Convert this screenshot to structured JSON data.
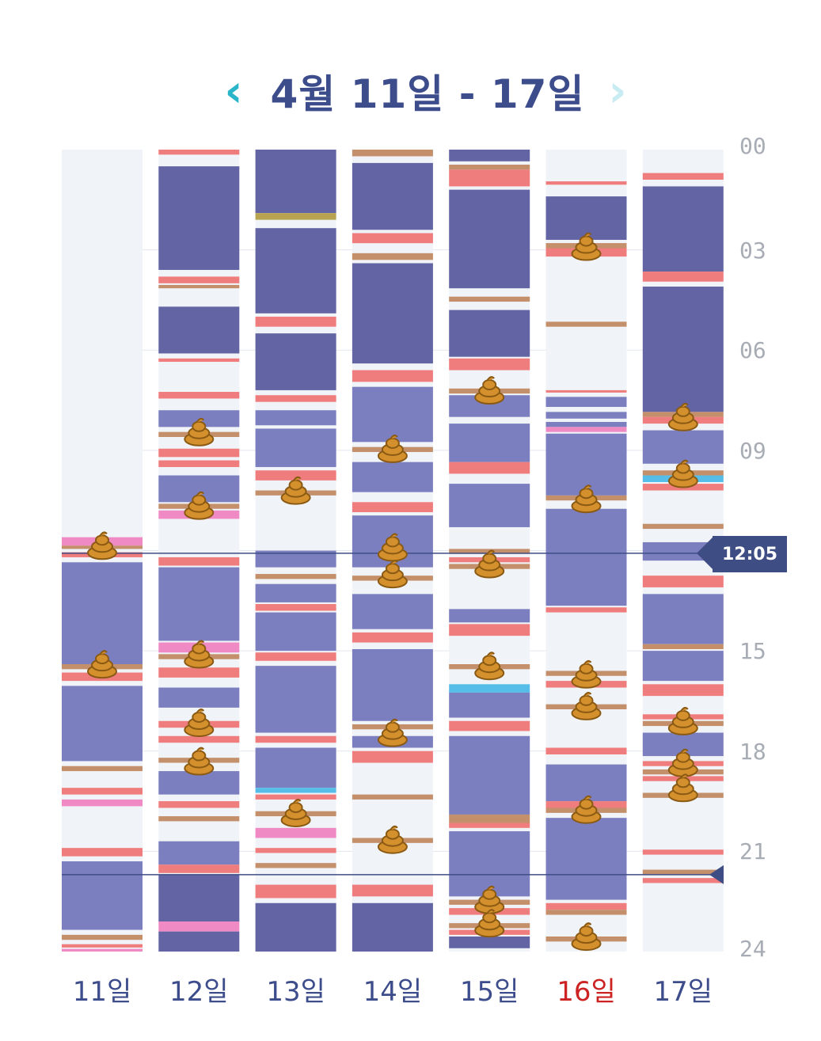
{
  "header": {
    "title": "4월 11일 - 17일",
    "prev_icon": "chevron-left-icon",
    "next_icon": "chevron-right-icon",
    "prev_color": "#2bb5c9",
    "next_color": "#c8ecf1"
  },
  "time_axis": {
    "ticks": [
      "00",
      "03",
      "06",
      "09",
      "15",
      "18",
      "21",
      "24"
    ]
  },
  "now_marker": {
    "label": "12:05",
    "hour": 12.08
  },
  "second_marker": {
    "hour": 21.7
  },
  "colors": {
    "background": "#f0f3f7",
    "sleep_deep": "#6264a3",
    "sleep_light": "#7c7fbf",
    "feed": "#f07d7d",
    "diaper": "#c4906c",
    "pink": "#f08ac5",
    "blue": "#55bde8",
    "olive": "#b8a450",
    "now_line": "#3f4d85",
    "sunday_label": "#cc2222",
    "weekday_label": "#3d4d8c"
  },
  "days": [
    {
      "label": "11일",
      "weekend": false,
      "events": [
        {
          "type": "pink",
          "start": 11.6,
          "end": 11.85
        },
        {
          "type": "diaper",
          "start": 11.85,
          "end": 11.95
        },
        {
          "type": "feed",
          "start": 12.05,
          "end": 12.2
        },
        {
          "type": "sleep_light",
          "start": 12.35,
          "end": 15.4
        },
        {
          "type": "diaper",
          "start": 15.4,
          "end": 15.55
        },
        {
          "type": "feed",
          "start": 15.65,
          "end": 15.9
        },
        {
          "type": "sleep_light",
          "start": 16.05,
          "end": 18.3
        },
        {
          "type": "diaper",
          "start": 18.45,
          "end": 18.6
        },
        {
          "type": "feed",
          "start": 19.1,
          "end": 19.3
        },
        {
          "type": "pink",
          "start": 19.45,
          "end": 19.65
        },
        {
          "type": "feed",
          "start": 20.9,
          "end": 21.15
        },
        {
          "type": "sleep_light",
          "start": 21.3,
          "end": 23.35
        },
        {
          "type": "diaper",
          "start": 23.5,
          "end": 23.65
        },
        {
          "type": "feed",
          "start": 23.78,
          "end": 23.88
        },
        {
          "type": "pink",
          "start": 23.92,
          "end": 24.0
        }
      ],
      "poops": [
        11.9,
        15.45
      ]
    },
    {
      "label": "12일",
      "weekend": false,
      "events": [
        {
          "type": "feed",
          "start": 0.0,
          "end": 0.15
        },
        {
          "type": "sleep_deep",
          "start": 0.5,
          "end": 3.6
        },
        {
          "type": "feed",
          "start": 3.8,
          "end": 4.0
        },
        {
          "type": "diaper",
          "start": 4.05,
          "end": 4.15
        },
        {
          "type": "sleep_deep",
          "start": 4.7,
          "end": 6.1
        },
        {
          "type": "feed",
          "start": 6.25,
          "end": 6.35
        },
        {
          "type": "feed",
          "start": 7.25,
          "end": 7.45
        },
        {
          "type": "sleep_light",
          "start": 7.8,
          "end": 8.3
        },
        {
          "type": "diaper",
          "start": 8.45,
          "end": 8.6
        },
        {
          "type": "feed",
          "start": 8.95,
          "end": 9.2
        },
        {
          "type": "feed",
          "start": 9.3,
          "end": 9.5
        },
        {
          "type": "sleep_light",
          "start": 9.75,
          "end": 10.55
        },
        {
          "type": "diaper",
          "start": 10.6,
          "end": 10.75
        },
        {
          "type": "pink",
          "start": 10.8,
          "end": 11.05
        },
        {
          "type": "feed",
          "start": 12.2,
          "end": 12.45
        },
        {
          "type": "sleep_light",
          "start": 12.5,
          "end": 14.7
        },
        {
          "type": "pink",
          "start": 14.75,
          "end": 15.05
        },
        {
          "type": "diaper",
          "start": 15.1,
          "end": 15.25
        },
        {
          "type": "feed",
          "start": 15.5,
          "end": 15.8
        },
        {
          "type": "sleep_light",
          "start": 16.1,
          "end": 16.7
        },
        {
          "type": "feed",
          "start": 17.1,
          "end": 17.3
        },
        {
          "type": "feed",
          "start": 17.55,
          "end": 17.75
        },
        {
          "type": "diaper",
          "start": 18.2,
          "end": 18.35
        },
        {
          "type": "sleep_light",
          "start": 18.6,
          "end": 19.3
        },
        {
          "type": "feed",
          "start": 19.5,
          "end": 19.7
        },
        {
          "type": "diaper",
          "start": 19.95,
          "end": 20.1
        },
        {
          "type": "sleep_light",
          "start": 20.7,
          "end": 21.4
        },
        {
          "type": "feed",
          "start": 21.4,
          "end": 21.65
        },
        {
          "type": "sleep_deep",
          "start": 21.7,
          "end": 23.1
        },
        {
          "type": "pink",
          "start": 23.1,
          "end": 23.4
        },
        {
          "type": "sleep_deep",
          "start": 23.4,
          "end": 24.0
        }
      ],
      "poops": [
        8.5,
        10.7,
        15.15,
        17.2,
        18.35
      ]
    },
    {
      "label": "13일",
      "weekend": false,
      "events": [
        {
          "type": "sleep_deep",
          "start": 0.0,
          "end": 1.9
        },
        {
          "type": "olive",
          "start": 1.9,
          "end": 2.1
        },
        {
          "type": "sleep_deep",
          "start": 2.35,
          "end": 4.9
        },
        {
          "type": "feed",
          "start": 5.0,
          "end": 5.3
        },
        {
          "type": "sleep_deep",
          "start": 5.5,
          "end": 7.2
        },
        {
          "type": "feed",
          "start": 7.35,
          "end": 7.55
        },
        {
          "type": "sleep_light",
          "start": 7.8,
          "end": 8.25
        },
        {
          "type": "sleep_light",
          "start": 8.35,
          "end": 9.5
        },
        {
          "type": "feed",
          "start": 9.6,
          "end": 9.9
        },
        {
          "type": "diaper",
          "start": 10.2,
          "end": 10.35
        },
        {
          "type": "sleep_light",
          "start": 12.0,
          "end": 12.5
        },
        {
          "type": "diaper",
          "start": 12.7,
          "end": 12.85
        },
        {
          "type": "sleep_light",
          "start": 13.0,
          "end": 13.55
        },
        {
          "type": "feed",
          "start": 13.6,
          "end": 13.8
        },
        {
          "type": "sleep_light",
          "start": 13.85,
          "end": 15.0
        },
        {
          "type": "feed",
          "start": 15.05,
          "end": 15.3
        },
        {
          "type": "sleep_light",
          "start": 15.45,
          "end": 17.45
        },
        {
          "type": "feed",
          "start": 17.55,
          "end": 17.75
        },
        {
          "type": "sleep_light",
          "start": 17.9,
          "end": 19.1
        },
        {
          "type": "blue",
          "start": 19.1,
          "end": 19.25
        },
        {
          "type": "feed",
          "start": 19.3,
          "end": 19.45
        },
        {
          "type": "diaper",
          "start": 19.8,
          "end": 19.95
        },
        {
          "type": "pink",
          "start": 20.3,
          "end": 20.6
        },
        {
          "type": "feed",
          "start": 20.9,
          "end": 21.05
        },
        {
          "type": "diaper",
          "start": 21.35,
          "end": 21.5
        },
        {
          "type": "feed",
          "start": 22.0,
          "end": 22.4
        },
        {
          "type": "sleep_deep",
          "start": 22.55,
          "end": 24.0
        }
      ],
      "poops": [
        10.25,
        19.9
      ]
    },
    {
      "label": "14일",
      "weekend": false,
      "events": [
        {
          "type": "diaper",
          "start": 0.0,
          "end": 0.2
        },
        {
          "type": "sleep_deep",
          "start": 0.4,
          "end": 2.4
        },
        {
          "type": "feed",
          "start": 2.5,
          "end": 2.8
        },
        {
          "type": "diaper",
          "start": 3.1,
          "end": 3.3
        },
        {
          "type": "sleep_deep",
          "start": 3.4,
          "end": 6.4
        },
        {
          "type": "feed",
          "start": 6.6,
          "end": 6.95
        },
        {
          "type": "sleep_light",
          "start": 7.1,
          "end": 8.75
        },
        {
          "type": "diaper",
          "start": 8.9,
          "end": 9.05
        },
        {
          "type": "sleep_light",
          "start": 9.35,
          "end": 10.25
        },
        {
          "type": "feed",
          "start": 10.55,
          "end": 10.85
        },
        {
          "type": "sleep_light",
          "start": 10.95,
          "end": 12.5
        },
        {
          "type": "diaper",
          "start": 12.75,
          "end": 12.9
        },
        {
          "type": "sleep_light",
          "start": 13.3,
          "end": 14.35
        },
        {
          "type": "feed",
          "start": 14.45,
          "end": 14.75
        },
        {
          "type": "sleep_light",
          "start": 14.95,
          "end": 17.1
        },
        {
          "type": "diaper",
          "start": 17.2,
          "end": 17.35
        },
        {
          "type": "sleep_light",
          "start": 17.55,
          "end": 17.9
        },
        {
          "type": "feed",
          "start": 18.0,
          "end": 18.35
        },
        {
          "type": "diaper",
          "start": 19.3,
          "end": 19.45
        },
        {
          "type": "diaper",
          "start": 20.6,
          "end": 20.75
        },
        {
          "type": "feed",
          "start": 22.0,
          "end": 22.35
        },
        {
          "type": "sleep_deep",
          "start": 22.55,
          "end": 24.0
        }
      ],
      "poops": [
        9.0,
        11.95,
        12.75,
        17.5,
        20.7
      ]
    },
    {
      "label": "15일",
      "weekend": false,
      "events": [
        {
          "type": "sleep_deep",
          "start": 0.0,
          "end": 0.35
        },
        {
          "type": "diaper",
          "start": 0.45,
          "end": 0.6
        },
        {
          "type": "feed",
          "start": 0.6,
          "end": 1.1
        },
        {
          "type": "sleep_deep",
          "start": 1.2,
          "end": 4.15
        },
        {
          "type": "diaper",
          "start": 4.4,
          "end": 4.55
        },
        {
          "type": "sleep_deep",
          "start": 4.8,
          "end": 6.2
        },
        {
          "type": "feed",
          "start": 6.25,
          "end": 6.6
        },
        {
          "type": "diaper",
          "start": 7.15,
          "end": 7.3
        },
        {
          "type": "sleep_light",
          "start": 7.35,
          "end": 8.0
        },
        {
          "type": "sleep_light",
          "start": 8.2,
          "end": 9.35
        },
        {
          "type": "feed",
          "start": 9.35,
          "end": 9.7
        },
        {
          "type": "sleep_light",
          "start": 10.0,
          "end": 11.3
        },
        {
          "type": "diaper",
          "start": 11.95,
          "end": 12.1
        },
        {
          "type": "feed",
          "start": 12.2,
          "end": 12.35
        },
        {
          "type": "diaper",
          "start": 12.4,
          "end": 12.55
        },
        {
          "type": "sleep_light",
          "start": 13.75,
          "end": 14.15
        },
        {
          "type": "feed",
          "start": 14.2,
          "end": 14.55
        },
        {
          "type": "diaper",
          "start": 15.4,
          "end": 15.55
        },
        {
          "type": "blue",
          "start": 16.0,
          "end": 16.25
        },
        {
          "type": "sleep_light",
          "start": 16.25,
          "end": 17.0
        },
        {
          "type": "feed",
          "start": 17.1,
          "end": 17.4
        },
        {
          "type": "sleep_light",
          "start": 17.55,
          "end": 19.9
        },
        {
          "type": "diaper",
          "start": 19.9,
          "end": 20.15
        },
        {
          "type": "feed",
          "start": 20.15,
          "end": 20.3
        },
        {
          "type": "sleep_light",
          "start": 20.4,
          "end": 22.35
        },
        {
          "type": "diaper",
          "start": 22.45,
          "end": 22.6
        },
        {
          "type": "feed",
          "start": 22.7,
          "end": 22.9
        },
        {
          "type": "diaper",
          "start": 23.15,
          "end": 23.3
        },
        {
          "type": "feed",
          "start": 23.35,
          "end": 23.5
        },
        {
          "type": "sleep_deep",
          "start": 23.55,
          "end": 23.9
        }
      ],
      "poops": [
        7.25,
        12.45,
        15.5,
        22.5,
        23.2
      ]
    },
    {
      "label": "16일",
      "weekend": true,
      "events": [
        {
          "type": "feed",
          "start": 0.95,
          "end": 1.05
        },
        {
          "type": "sleep_deep",
          "start": 1.4,
          "end": 2.7
        },
        {
          "type": "feed",
          "start": 2.8,
          "end": 3.2
        },
        {
          "type": "diaper",
          "start": 2.8,
          "end": 2.95
        },
        {
          "type": "diaper",
          "start": 5.15,
          "end": 5.3
        },
        {
          "type": "feed",
          "start": 7.2,
          "end": 7.25
        },
        {
          "type": "sleep_light",
          "start": 7.4,
          "end": 7.7
        },
        {
          "type": "sleep_light",
          "start": 7.85,
          "end": 8.05
        },
        {
          "type": "sleep_light",
          "start": 8.15,
          "end": 8.3
        },
        {
          "type": "pink",
          "start": 8.3,
          "end": 8.45
        },
        {
          "type": "sleep_light",
          "start": 8.5,
          "end": 10.35
        },
        {
          "type": "diaper",
          "start": 10.35,
          "end": 10.5
        },
        {
          "type": "sleep_light",
          "start": 10.75,
          "end": 13.65
        },
        {
          "type": "feed",
          "start": 13.7,
          "end": 13.85
        },
        {
          "type": "diaper",
          "start": 15.6,
          "end": 15.75
        },
        {
          "type": "feed",
          "start": 15.9,
          "end": 16.1
        },
        {
          "type": "diaper",
          "start": 16.6,
          "end": 16.75
        },
        {
          "type": "feed",
          "start": 17.9,
          "end": 18.1
        },
        {
          "type": "sleep_light",
          "start": 18.4,
          "end": 19.5
        },
        {
          "type": "feed",
          "start": 19.5,
          "end": 19.7
        },
        {
          "type": "diaper",
          "start": 19.7,
          "end": 19.85
        },
        {
          "type": "sleep_light",
          "start": 20.0,
          "end": 22.45
        },
        {
          "type": "feed",
          "start": 22.55,
          "end": 22.75
        },
        {
          "type": "diaper",
          "start": 22.75,
          "end": 22.9
        },
        {
          "type": "diaper",
          "start": 23.55,
          "end": 23.7
        }
      ],
      "poops": [
        2.95,
        10.5,
        15.75,
        16.7,
        19.8,
        23.6
      ]
    },
    {
      "label": "17일",
      "weekend": false,
      "events": [
        {
          "type": "feed",
          "start": 0.7,
          "end": 0.9
        },
        {
          "type": "sleep_deep",
          "start": 1.1,
          "end": 3.65
        },
        {
          "type": "feed",
          "start": 3.65,
          "end": 3.95
        },
        {
          "type": "sleep_deep",
          "start": 4.1,
          "end": 7.85
        },
        {
          "type": "diaper",
          "start": 7.85,
          "end": 8.0
        },
        {
          "type": "feed",
          "start": 8.0,
          "end": 8.2
        },
        {
          "type": "sleep_light",
          "start": 8.4,
          "end": 9.4
        },
        {
          "type": "diaper",
          "start": 9.6,
          "end": 9.75
        },
        {
          "type": "blue",
          "start": 9.75,
          "end": 9.95
        },
        {
          "type": "feed",
          "start": 10.0,
          "end": 10.2
        },
        {
          "type": "diaper",
          "start": 11.2,
          "end": 11.35
        },
        {
          "type": "sleep_light",
          "start": 11.75,
          "end": 12.3
        },
        {
          "type": "feed",
          "start": 12.75,
          "end": 13.1
        },
        {
          "type": "sleep_light",
          "start": 13.3,
          "end": 14.8
        },
        {
          "type": "diaper",
          "start": 14.8,
          "end": 14.95
        },
        {
          "type": "sleep_light",
          "start": 15.0,
          "end": 15.9
        },
        {
          "type": "feed",
          "start": 16.0,
          "end": 16.35
        },
        {
          "type": "feed",
          "start": 16.9,
          "end": 17.05
        },
        {
          "type": "diaper",
          "start": 17.1,
          "end": 17.25
        },
        {
          "type": "sleep_light",
          "start": 17.45,
          "end": 18.15
        },
        {
          "type": "feed",
          "start": 18.3,
          "end": 18.45
        },
        {
          "type": "diaper",
          "start": 18.55,
          "end": 18.7
        },
        {
          "type": "feed",
          "start": 18.75,
          "end": 18.9
        },
        {
          "type": "diaper",
          "start": 19.25,
          "end": 19.4
        },
        {
          "type": "feed",
          "start": 20.95,
          "end": 21.1
        },
        {
          "type": "diaper",
          "start": 21.55,
          "end": 21.7
        },
        {
          "type": "feed",
          "start": 21.8,
          "end": 21.95
        }
      ],
      "poops": [
        8.05,
        9.75,
        17.15,
        18.4,
        19.15
      ]
    }
  ]
}
